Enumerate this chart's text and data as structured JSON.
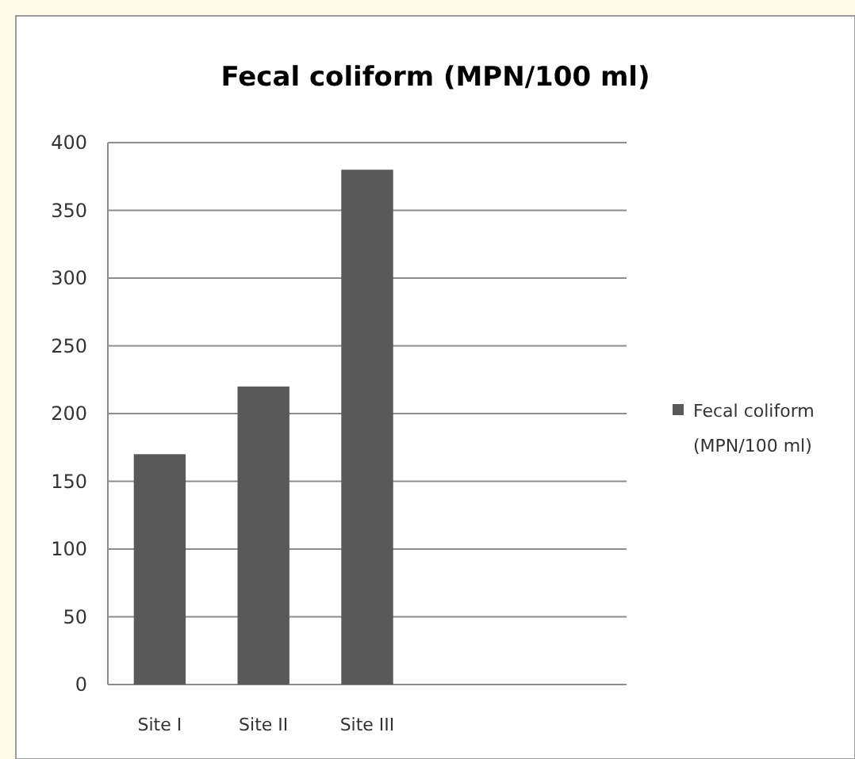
{
  "chart_data": {
    "type": "bar",
    "title": "Fecal coliform (MPN/100 ml)",
    "categories": [
      "Site I",
      "Site II",
      "Site III",
      null,
      null
    ],
    "series": [
      {
        "name": "Fecal coliform (MPN/100 ml)",
        "color": "#595959",
        "values": [
          170,
          220,
          380,
          null,
          null
        ]
      }
    ],
    "ylim": [
      0,
      400
    ],
    "yticks": [
      0,
      50,
      100,
      150,
      200,
      250,
      300,
      350,
      400
    ],
    "grid": "y",
    "legend": "right"
  }
}
